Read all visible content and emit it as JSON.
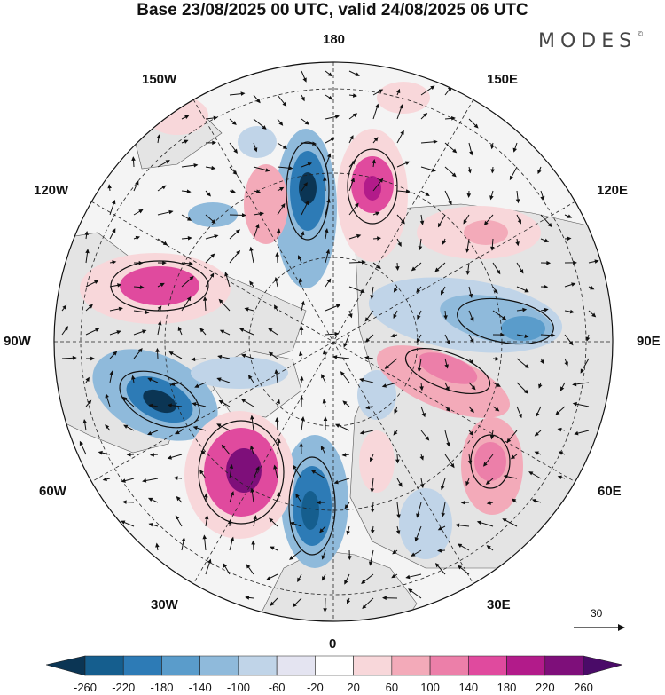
{
  "header": {
    "title": "Base 23/08/2025 00 UTC, valid 24/08/2025 06 UTC",
    "brand": "MODES",
    "brand_mark": "©"
  },
  "map": {
    "projection_labels": {
      "top": "180",
      "bottom": "0",
      "left": "90W",
      "right": "90E",
      "top_left": "150W",
      "top_right": "150E",
      "upper_left": "120W",
      "upper_right": "120E",
      "lower_left": "60W",
      "lower_right": "60E",
      "bottom_left": "30W",
      "bottom_right": "30E"
    },
    "colors": {
      "land": "#e6e6e6",
      "ocean": "#f2f2f2",
      "neg_strong": "#1f5f8b",
      "pos_strong": "#a01a7d"
    }
  },
  "reference_vector": {
    "label": "30"
  },
  "colorbar": {
    "ticks": [
      "-260",
      "-220",
      "-180",
      "-140",
      "-100",
      "-60",
      "-20",
      "20",
      "60",
      "100",
      "140",
      "180",
      "220",
      "260"
    ],
    "colors": [
      "#0b3554",
      "#155e8e",
      "#2d7bb6",
      "#5a9ccb",
      "#8fbadb",
      "#c0d4e8",
      "#e4e4f1",
      "#ffffff",
      "#f8d7da",
      "#f3aab9",
      "#ec7fa9",
      "#e04a9e",
      "#b21b8a",
      "#7e0f7a",
      "#4a0b68"
    ]
  }
}
